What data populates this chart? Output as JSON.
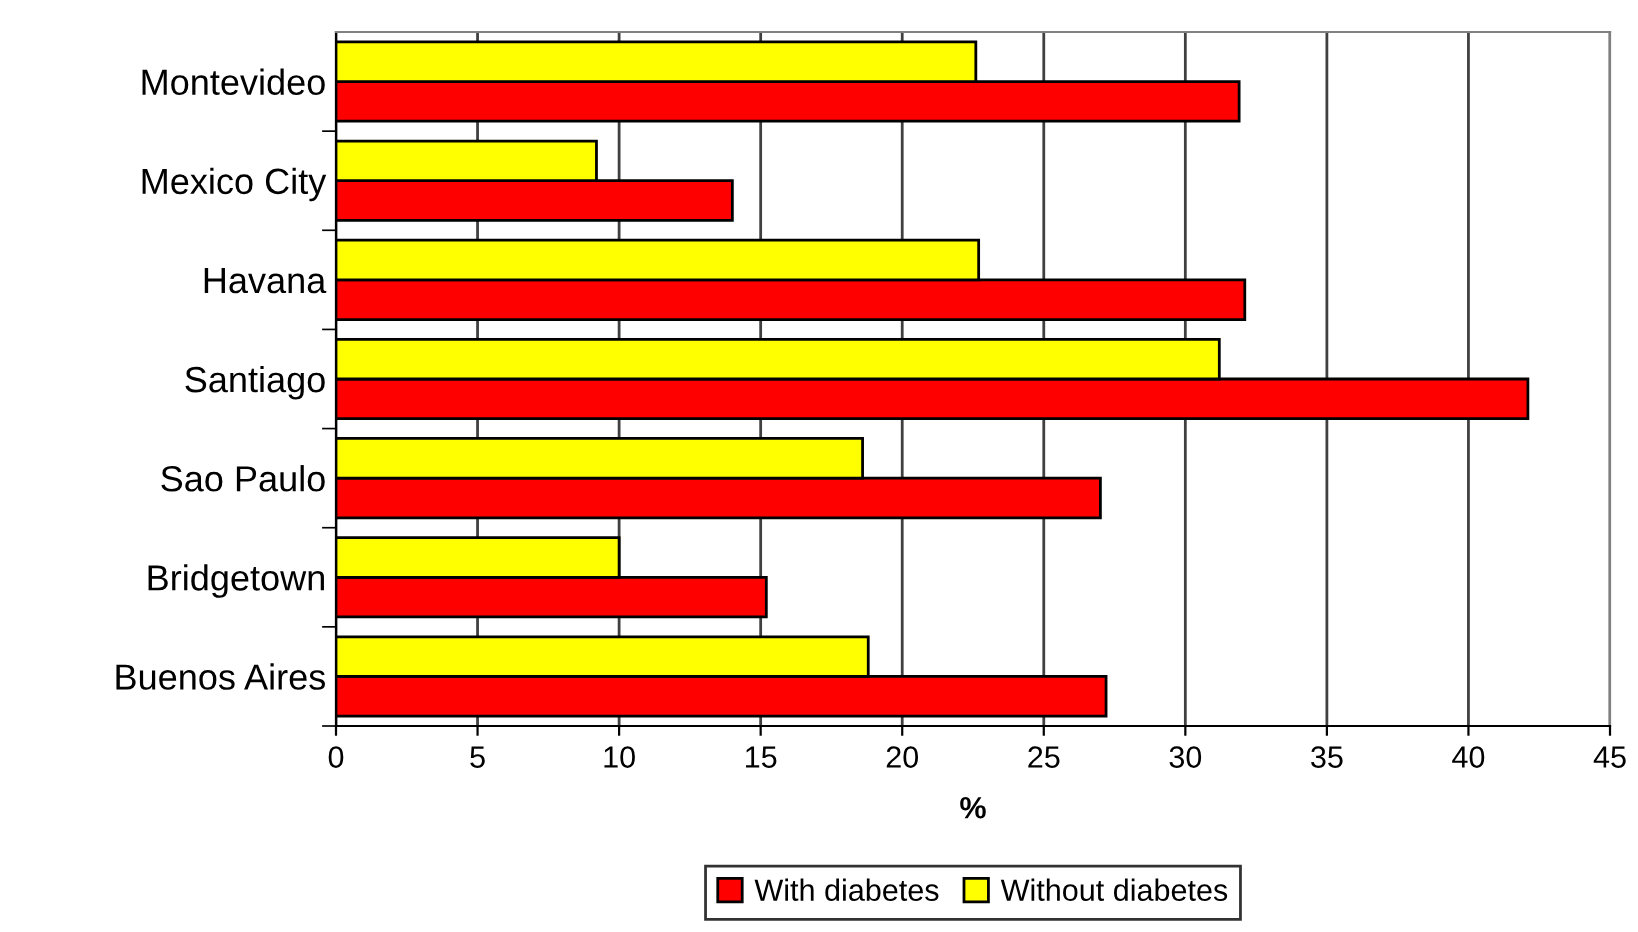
{
  "chart_data": {
    "type": "bar",
    "orientation": "horizontal",
    "xlabel": "%",
    "categories": [
      "Montevideo",
      "Mexico City",
      "Havana",
      "Santiago",
      "Sao Paulo",
      "Bridgetown",
      "Buenos Aires"
    ],
    "series": [
      {
        "name": "With diabetes",
        "color": "#ff0000",
        "values": [
          31.9,
          14.0,
          32.1,
          42.1,
          27.0,
          15.2,
          27.2
        ]
      },
      {
        "name": "Without diabetes",
        "color": "#ffff00",
        "values": [
          22.6,
          9.2,
          22.7,
          31.2,
          18.6,
          10.0,
          18.8
        ]
      }
    ],
    "xlim": [
      0,
      45
    ],
    "xticks": [
      0,
      5,
      10,
      15,
      20,
      25,
      30,
      35,
      40,
      45
    ],
    "grid": "x",
    "legend": "bottom"
  }
}
